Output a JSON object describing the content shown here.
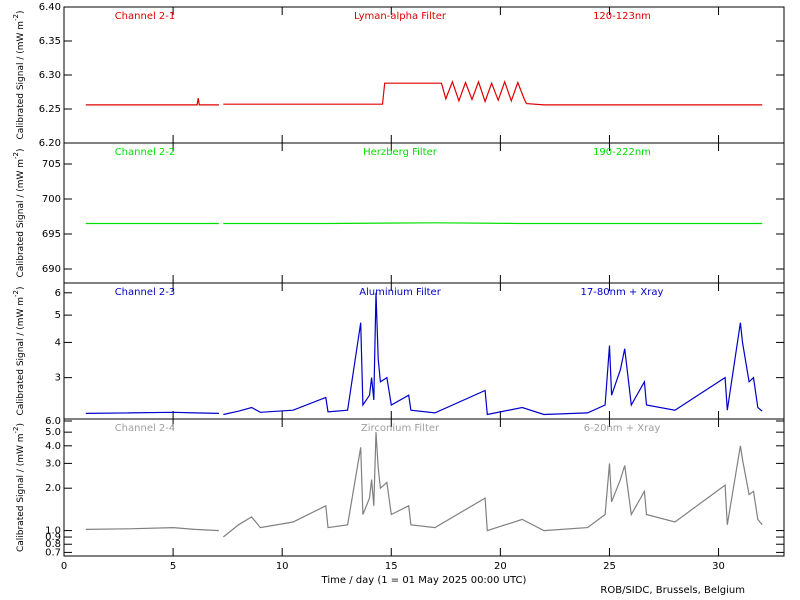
{
  "chart_data": [
    {
      "type": "line",
      "color": "#e00000",
      "annotation_color": "#e00000",
      "annotations": [
        "Channel 2-1",
        "Lyman-alpha Filter",
        "120-123nm"
      ],
      "ylabel": {
        "text": "Calibrated Signal / (mW m",
        "sup": "-2",
        "end": ")"
      },
      "xlim": [
        0,
        33
      ],
      "xticks": [
        0,
        5,
        10,
        15,
        20,
        25,
        30
      ],
      "ylim": [
        6.2,
        6.4
      ],
      "ylog": false,
      "yticks": [
        {
          "value": 6.2,
          "label": "6.20"
        },
        {
          "value": 6.25,
          "label": "6.25"
        },
        {
          "value": 6.3,
          "label": "6.30"
        },
        {
          "value": 6.35,
          "label": "6.35"
        },
        {
          "value": 6.4,
          "label": "6.40"
        }
      ],
      "x": [
        1,
        3,
        5,
        6.1,
        6.15,
        6.2,
        7.1,
        7.2,
        7.3,
        9,
        11,
        13,
        14.6,
        14.7,
        15.5,
        16.5,
        17.3,
        17.5,
        17.8,
        18.1,
        18.4,
        18.7,
        19,
        19.3,
        19.6,
        19.9,
        20.2,
        20.5,
        20.8,
        21.1,
        21.2,
        22,
        24,
        26,
        28,
        30,
        32
      ],
      "values": [
        6.256,
        6.256,
        6.256,
        6.256,
        6.266,
        6.256,
        6.256,
        null,
        6.257,
        6.257,
        6.257,
        6.257,
        6.257,
        6.288,
        6.288,
        6.288,
        6.288,
        6.265,
        6.29,
        6.262,
        6.289,
        6.264,
        6.29,
        6.261,
        6.288,
        6.263,
        6.29,
        6.262,
        6.289,
        6.264,
        6.258,
        6.256,
        6.256,
        6.256,
        6.256,
        6.256,
        6.256
      ]
    },
    {
      "type": "line",
      "color": "#00e000",
      "annotation_color": "#00e000",
      "annotations": [
        "Channel 2-2",
        "Herzberg Filter",
        "190-222nm"
      ],
      "ylabel": {
        "text": "Calibrated Signal / (mW m",
        "sup": "-2",
        "end": ")"
      },
      "xlim": [
        0,
        33
      ],
      "xticks": [
        0,
        5,
        10,
        15,
        20,
        25,
        30
      ],
      "ylim": [
        688,
        708
      ],
      "ylog": false,
      "yticks": [
        690,
        695,
        700,
        705
      ],
      "x": [
        1,
        4,
        7.1,
        7.2,
        7.3,
        12,
        17,
        21,
        26,
        32
      ],
      "values": [
        696.5,
        696.5,
        696.5,
        null,
        696.5,
        696.5,
        696.6,
        696.5,
        696.5,
        696.5
      ]
    },
    {
      "type": "line",
      "color": "#0000c8",
      "annotation_color": "#0000c8",
      "annotations": [
        "Channel 2-3",
        "Aluminium Filter",
        "17-80nm + Xray"
      ],
      "ylabel": {
        "text": "Calibrated Signal / (mW m",
        "sup": "-2",
        "end": ")"
      },
      "xlim": [
        0,
        33
      ],
      "xticks": [
        0,
        5,
        10,
        15,
        20,
        25,
        30
      ],
      "ylim": [
        2.14,
        6.5
      ],
      "ylog": true,
      "yticks": [
        3,
        4,
        5,
        6
      ],
      "x": [
        1,
        3,
        5,
        6,
        7.1,
        7.2,
        7.3,
        8,
        8.6,
        9,
        10.5,
        12,
        12.1,
        13,
        13.6,
        13.7,
        14,
        14.1,
        14.2,
        14.3,
        14.4,
        14.5,
        14.8,
        15,
        15.8,
        15.9,
        17,
        19.3,
        19.4,
        21,
        22,
        24,
        24.8,
        25,
        25.1,
        25.5,
        25.7,
        26,
        26.6,
        26.7,
        28,
        30.3,
        30.4,
        31,
        31.1,
        31.4,
        31.6,
        31.8,
        32
      ],
      "values": [
        2.24,
        2.25,
        2.26,
        2.25,
        2.24,
        null,
        2.22,
        2.28,
        2.35,
        2.26,
        2.3,
        2.55,
        2.27,
        2.3,
        4.7,
        2.4,
        2.6,
        3.0,
        2.5,
        6.0,
        3.5,
        2.9,
        3.0,
        2.4,
        2.6,
        2.3,
        2.25,
        2.7,
        2.22,
        2.35,
        2.22,
        2.25,
        2.4,
        3.9,
        2.6,
        3.2,
        3.8,
        2.4,
        2.9,
        2.4,
        2.3,
        3.0,
        2.3,
        4.7,
        4.0,
        2.9,
        3.0,
        2.35,
        2.28
      ]
    },
    {
      "type": "line",
      "color": "#808080",
      "annotation_color": "#a0a0a0",
      "annotations": [
        "Channel 2-4",
        "Zirconium Filter",
        "6-20nm + Xray"
      ],
      "ylabel": {
        "text": "Calibrated Signal / (mW m",
        "sup": "-2",
        "end": ")"
      },
      "xlim": [
        0,
        33
      ],
      "xticks": [
        0,
        5,
        10,
        15,
        20,
        25,
        30
      ],
      "xlabel": "Time / day (1 = 01 May 2025 00:00 UTC)",
      "ylim": [
        0.66,
        6.2
      ],
      "ylog": true,
      "yticks": [
        0.7,
        0.8,
        0.9,
        {
          "value": 1,
          "label": "1.0"
        },
        {
          "value": 2,
          "label": "2.0"
        },
        {
          "value": 3,
          "label": "3.0"
        },
        {
          "value": 4,
          "label": "4.0"
        },
        {
          "value": 5,
          "label": "5.0"
        },
        {
          "value": 6,
          "label": "6.0"
        }
      ],
      "x": [
        1,
        3,
        5,
        6,
        7.1,
        7.2,
        7.3,
        8,
        8.6,
        9,
        10.5,
        12,
        12.1,
        13,
        13.6,
        13.7,
        14,
        14.1,
        14.2,
        14.3,
        14.4,
        14.5,
        14.8,
        15,
        15.8,
        15.9,
        17,
        19.3,
        19.4,
        21,
        22,
        24,
        24.8,
        25,
        25.1,
        25.5,
        25.7,
        26,
        26.6,
        26.7,
        28,
        30.3,
        30.4,
        31,
        31.1,
        31.4,
        31.6,
        31.8,
        32
      ],
      "values": [
        1.02,
        1.03,
        1.05,
        1.02,
        1.0,
        null,
        0.9,
        1.1,
        1.25,
        1.05,
        1.15,
        1.5,
        1.05,
        1.1,
        3.9,
        1.3,
        1.7,
        2.3,
        1.5,
        5.0,
        2.8,
        2.0,
        2.2,
        1.3,
        1.5,
        1.1,
        1.05,
        1.7,
        1.0,
        1.2,
        1.0,
        1.05,
        1.3,
        3.0,
        1.6,
        2.3,
        2.9,
        1.3,
        1.9,
        1.3,
        1.15,
        2.1,
        1.1,
        4.0,
        3.2,
        1.8,
        1.9,
        1.2,
        1.1
      ]
    }
  ],
  "footer": "ROB/SIDC, Brussels, Belgium"
}
